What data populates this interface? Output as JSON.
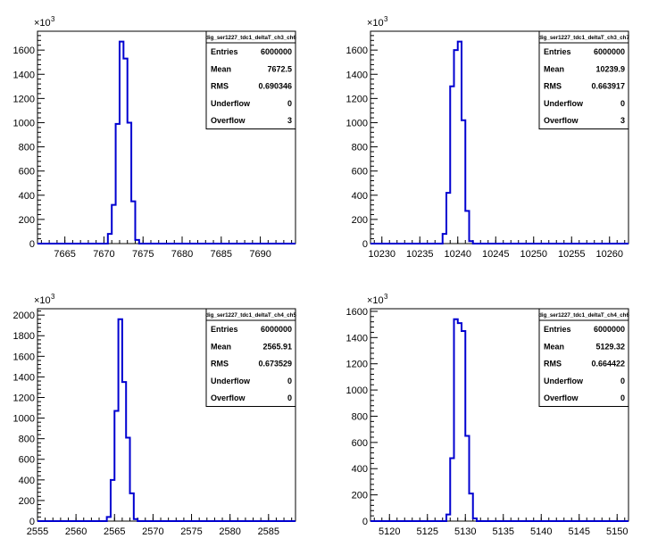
{
  "chart_data": [
    {
      "type": "histogram",
      "title": "",
      "xlabel": "",
      "ylabel": "",
      "exponent_label": "×10",
      "exponent_power": "3",
      "xlim": [
        7661.5,
        7694.5
      ],
      "ylim": [
        0,
        1756
      ],
      "xticks": [
        "7665",
        "7670",
        "7675",
        "7680",
        "7685",
        "7690"
      ],
      "yticks": [
        "0",
        "200",
        "400",
        "600",
        "800",
        "1000",
        "1200",
        "1400",
        "1600"
      ],
      "bins": [
        {
          "x": 7670.0,
          "count": 0
        },
        {
          "x": 7670.5,
          "count": 80
        },
        {
          "x": 7671.0,
          "count": 320
        },
        {
          "x": 7671.5,
          "count": 990
        },
        {
          "x": 7672.0,
          "count": 1670
        },
        {
          "x": 7672.5,
          "count": 1530
        },
        {
          "x": 7673.0,
          "count": 1000
        },
        {
          "x": 7673.5,
          "count": 350
        },
        {
          "x": 7674.0,
          "count": 30
        },
        {
          "x": 7674.5,
          "count": 0
        }
      ],
      "stats": {
        "name": "dig_ser1227_tdc1_deltaT_ch3_ch6",
        "rows": [
          {
            "label": "Entries",
            "value": "6000000"
          },
          {
            "label": "Mean",
            "value": "7672.5"
          },
          {
            "label": "RMS",
            "value": "0.690346"
          },
          {
            "label": "Underflow",
            "value": "0"
          },
          {
            "label": "Overflow",
            "value": "3"
          }
        ]
      }
    },
    {
      "type": "histogram",
      "title": "",
      "xlabel": "",
      "ylabel": "",
      "exponent_label": "×10",
      "exponent_power": "3",
      "xlim": [
        10228.5,
        10262.5
      ],
      "ylim": [
        0,
        1756
      ],
      "xticks": [
        "10230",
        "10235",
        "10240",
        "10245",
        "10250",
        "10255",
        "10260"
      ],
      "yticks": [
        "0",
        "200",
        "400",
        "600",
        "800",
        "1000",
        "1200",
        "1400",
        "1600"
      ],
      "bins": [
        {
          "x": 10237.5,
          "count": 0
        },
        {
          "x": 10238.0,
          "count": 80
        },
        {
          "x": 10238.5,
          "count": 420
        },
        {
          "x": 10239.0,
          "count": 1300
        },
        {
          "x": 10239.5,
          "count": 1600
        },
        {
          "x": 10240.0,
          "count": 1670
        },
        {
          "x": 10240.5,
          "count": 1020
        },
        {
          "x": 10241.0,
          "count": 270
        },
        {
          "x": 10241.5,
          "count": 20
        },
        {
          "x": 10242.0,
          "count": 0
        }
      ],
      "stats": {
        "name": "dig_ser1227_tdc1_deltaT_ch3_ch7",
        "rows": [
          {
            "label": "Entries",
            "value": "6000000"
          },
          {
            "label": "Mean",
            "value": "10239.9"
          },
          {
            "label": "RMS",
            "value": "0.663917"
          },
          {
            "label": "Underflow",
            "value": "0"
          },
          {
            "label": "Overflow",
            "value": "3"
          }
        ]
      }
    },
    {
      "type": "histogram",
      "title": "",
      "xlabel": "",
      "ylabel": "",
      "exponent_label": "×10",
      "exponent_power": "3",
      "xlim": [
        2555.0,
        2588.5
      ],
      "ylim": [
        0,
        2062
      ],
      "xticks": [
        "2555",
        "2560",
        "2565",
        "2570",
        "2575",
        "2580",
        "2585"
      ],
      "yticks": [
        "0",
        "200",
        "400",
        "600",
        "800",
        "1000",
        "1200",
        "1400",
        "1600",
        "1800",
        "2000"
      ],
      "bins": [
        {
          "x": 2563.5,
          "count": 0
        },
        {
          "x": 2564.0,
          "count": 40
        },
        {
          "x": 2564.5,
          "count": 400
        },
        {
          "x": 2565.0,
          "count": 1070
        },
        {
          "x": 2565.5,
          "count": 1960
        },
        {
          "x": 2566.0,
          "count": 1350
        },
        {
          "x": 2566.5,
          "count": 810
        },
        {
          "x": 2567.0,
          "count": 270
        },
        {
          "x": 2567.5,
          "count": 20
        },
        {
          "x": 2568.0,
          "count": 0
        }
      ],
      "stats": {
        "name": "dig_ser1227_tdc1_deltaT_ch4_ch5",
        "rows": [
          {
            "label": "Entries",
            "value": "6000000"
          },
          {
            "label": "Mean",
            "value": "2565.91"
          },
          {
            "label": "RMS",
            "value": "0.673529"
          },
          {
            "label": "Underflow",
            "value": "0"
          },
          {
            "label": "Overflow",
            "value": "0"
          }
        ]
      }
    },
    {
      "type": "histogram",
      "title": "",
      "xlabel": "",
      "ylabel": "",
      "exponent_label": "×10",
      "exponent_power": "3",
      "xlim": [
        5117.5,
        5151.5
      ],
      "ylim": [
        0,
        1620
      ],
      "xticks": [
        "5120",
        "5125",
        "5130",
        "5135",
        "5140",
        "5145",
        "5150"
      ],
      "yticks": [
        "0",
        "200",
        "400",
        "600",
        "800",
        "1000",
        "1200",
        "1400",
        "1600"
      ],
      "bins": [
        {
          "x": 5127.0,
          "count": 0
        },
        {
          "x": 5127.5,
          "count": 50
        },
        {
          "x": 5128.0,
          "count": 480
        },
        {
          "x": 5128.5,
          "count": 1540
        },
        {
          "x": 5129.0,
          "count": 1510
        },
        {
          "x": 5129.5,
          "count": 1450
        },
        {
          "x": 5130.0,
          "count": 650
        },
        {
          "x": 5130.5,
          "count": 210
        },
        {
          "x": 5131.0,
          "count": 20
        },
        {
          "x": 5131.5,
          "count": 0
        }
      ],
      "stats": {
        "name": "dig_ser1227_tdc1_deltaT_ch4_ch6",
        "rows": [
          {
            "label": "Entries",
            "value": "6000000"
          },
          {
            "label": "Mean",
            "value": "5129.32"
          },
          {
            "label": "RMS",
            "value": "0.664422"
          },
          {
            "label": "Underflow",
            "value": "0"
          },
          {
            "label": "Overflow",
            "value": "0"
          }
        ]
      }
    }
  ],
  "colors": {
    "histogram_line": "#0000d0",
    "axis": "#000000",
    "background": "#ffffff"
  }
}
